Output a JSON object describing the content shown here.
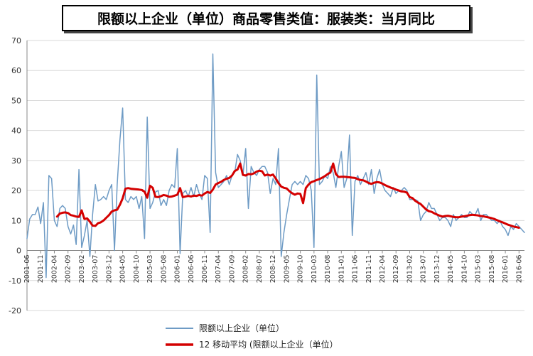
{
  "title": "限额以上企业（单位）商品零售类值：服装类：当月同比",
  "colors": {
    "monthly": "#6e9bc5",
    "moving_avg": "#d40000",
    "grid": "#d9d9d9",
    "axis": "#888888"
  },
  "chart_data": {
    "type": "line",
    "title": "限额以上企业（单位）商品零售类值：服装类：当月同比",
    "ylim": [
      -20,
      70
    ],
    "yticks": [
      -20,
      -10,
      0,
      10,
      20,
      30,
      40,
      50,
      60,
      70
    ],
    "grid": true,
    "legend_position": "bottom-left",
    "x_range": [
      "2001-06",
      "2016-08"
    ],
    "xticks": [
      "2001-06",
      "2001-11",
      "2002-04",
      "2002-09",
      "2003-02",
      "2003-07",
      "2003-12",
      "2004-05",
      "2004-10",
      "2005-03",
      "2005-08",
      "2006-01",
      "2006-06",
      "2006-11",
      "2007-04",
      "2007-09",
      "2008-02",
      "2008-07",
      "2008-12",
      "2009-05",
      "2009-10",
      "2010-03",
      "2010-08",
      "2011-01",
      "2011-06",
      "2011-11",
      "2012-04",
      "2012-09",
      "2013-02",
      "2013-07",
      "2013-12",
      "2014-05",
      "2014-10",
      "2015-03",
      "2015-08",
      "2016-01",
      "2016-06"
    ],
    "series": [
      {
        "name": "限额以上企业（单位）",
        "color": "#6e9bc5",
        "start": "2001-06",
        "values": [
          4,
          10.5,
          12,
          12,
          14.5,
          9,
          16,
          -9,
          25,
          24,
          10,
          8,
          14,
          15,
          14,
          8,
          5.5,
          8.5,
          2,
          27,
          1,
          5,
          10,
          -2,
          12,
          22,
          16.5,
          17,
          18,
          17,
          20,
          22,
          0,
          22,
          37,
          47.5,
          17,
          16,
          18,
          17,
          18,
          14,
          18,
          4,
          44.5,
          14,
          16,
          19.5,
          20,
          15,
          17,
          15,
          20,
          22,
          21,
          34,
          -1,
          19,
          20,
          18,
          21,
          18,
          22,
          19,
          17,
          25,
          24,
          6,
          65.5,
          26,
          21,
          22,
          23,
          25,
          22,
          25,
          26,
          32,
          30,
          25,
          34,
          14,
          28,
          26,
          25,
          27,
          28,
          28,
          26,
          19,
          24,
          22,
          34,
          -2,
          6,
          12,
          17,
          22,
          23,
          22,
          23,
          22,
          25,
          24,
          20,
          1,
          58.5,
          22,
          23,
          25,
          24,
          28,
          26,
          21,
          28,
          33,
          21,
          24,
          38.5,
          5,
          23,
          25,
          22,
          24,
          26,
          22,
          27,
          19,
          24,
          27,
          22,
          20,
          19,
          18,
          21,
          19,
          20,
          20,
          21,
          20,
          17,
          17,
          17,
          16.5,
          10,
          12,
          13,
          16,
          14,
          14,
          12,
          10,
          11,
          11,
          10,
          8,
          12,
          10,
          11,
          12,
          11,
          11,
          13,
          12,
          12,
          14,
          10,
          12,
          12,
          11,
          10,
          10,
          9,
          10,
          8,
          7,
          5,
          8,
          7,
          9,
          8,
          7,
          6
        ]
      },
      {
        "name": "12 移动平均 (限额以上企业（单位）",
        "color": "#d40000",
        "start": "2002-05",
        "values": [
          11.3,
          12.3,
          12.6,
          12.7,
          12.5,
          11.8,
          11.6,
          11.3,
          11.2,
          13.4,
          10.5,
          10.7,
          9.6,
          8.3,
          8.2,
          9.1,
          9.4,
          10.0,
          10.9,
          11.8,
          13.0,
          13.4,
          13.6,
          15.3,
          17.4,
          20.6,
          20.8,
          20.6,
          20.5,
          20.4,
          20.3,
          20.2,
          19.6,
          17.6,
          21.6,
          20.9,
          17.9,
          17.8,
          18.1,
          18.5,
          18.3,
          17.9,
          18.0,
          18.3,
          18.6,
          20.8,
          17.8,
          18.0,
          18.2,
          18.0,
          18.3,
          18.2,
          18.5,
          18.3,
          19.0,
          19.5,
          19.2,
          20.3,
          22.0,
          22.5,
          22.9,
          23.5,
          23.9,
          24.2,
          25.0,
          26.5,
          27.0,
          29.0,
          25.2,
          25.0,
          25.5,
          25.4,
          25.7,
          26.3,
          26.6,
          26.4,
          25.0,
          25.3,
          25.0,
          25.3,
          24.0,
          22.5,
          21.3,
          20.9,
          20.7,
          19.8,
          19.1,
          18.6,
          19.0,
          18.9,
          15.8,
          20.8,
          22.0,
          22.8,
          23.1,
          23.5,
          23.8,
          24.3,
          24.8,
          25.5,
          26.0,
          29.0,
          25.5,
          24.5,
          24.6,
          24.6,
          24.5,
          24.4,
          24.3,
          24.2,
          23.8,
          23.5,
          23.4,
          23.0,
          22.5,
          22.2,
          22.6,
          22.8,
          22.7,
          22.3,
          21.8,
          21.4,
          21.0,
          20.7,
          20.3,
          20.0,
          19.7,
          19.6,
          19.3,
          17.8,
          17.5,
          16.6,
          16.0,
          15.5,
          14.6,
          13.7,
          13.1,
          12.9,
          12.4,
          12.0,
          11.6,
          11.3,
          11.5,
          11.6,
          11.4,
          11.2,
          11.1,
          11.1,
          11.3,
          11.4,
          11.6,
          11.8,
          11.9,
          11.8,
          11.7,
          11.5,
          11.4,
          11.2,
          11.0,
          10.8,
          10.5,
          10.1,
          9.7,
          9.4,
          9.0,
          8.6,
          8.3,
          8.0,
          7.8,
          7.6
        ]
      }
    ]
  },
  "legend": [
    {
      "label": "限额以上企业（单位）",
      "color": "#6e9bc5"
    },
    {
      "label": "12 移动平均 (限额以上企业（单位）",
      "color": "#d40000"
    }
  ]
}
